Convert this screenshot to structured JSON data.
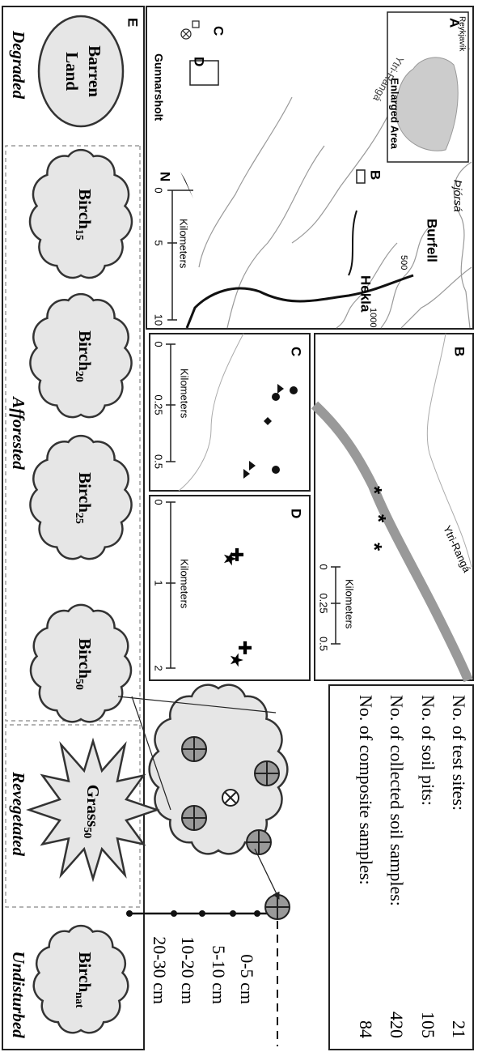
{
  "panel_a": {
    "label": "A",
    "inset": {
      "place": "Reykjavík",
      "caption": "Enlarged Area"
    },
    "rivers": [
      "Ytri-Rangá",
      "Þjórsá"
    ],
    "places": [
      "Burfell",
      "Hekla",
      "Gunnarsholt"
    ],
    "contours": [
      "500",
      "1000"
    ],
    "sites": [
      "B",
      "C",
      "D"
    ],
    "north": "N",
    "scale": {
      "ticks": [
        "0",
        "5",
        "10"
      ],
      "unit": "Kilometers"
    }
  },
  "panel_b": {
    "label": "B",
    "river": "Ytri-Rangá",
    "scale": {
      "ticks": [
        "0",
        "0.25",
        "0.5"
      ],
      "unit": "Kilometers"
    }
  },
  "panel_c": {
    "label": "C",
    "scale": {
      "ticks": [
        "0",
        "0.25",
        "0.5"
      ],
      "unit": "Kilometers"
    }
  },
  "panel_d": {
    "label": "D",
    "scale": {
      "ticks": [
        "0",
        "1",
        "2"
      ],
      "unit": "Kilometers"
    }
  },
  "summary": {
    "rows": [
      {
        "label": "No. of test sites:",
        "value": 21
      },
      {
        "label": "No. of soil pits:",
        "value": 105
      },
      {
        "label": "No. of collected soil samples:",
        "value": 420
      },
      {
        "label": "No. of composite samples:",
        "value": 84
      }
    ]
  },
  "depths": [
    "0-5 cm",
    "5-10 cm",
    "10-20 cm",
    "20-30 cm"
  ],
  "panel_e": {
    "label": "E",
    "barren": [
      "Barren",
      "Land"
    ],
    "sites": [
      {
        "name": "Birch",
        "sub": "15"
      },
      {
        "name": "Birch",
        "sub": "20"
      },
      {
        "name": "Birch",
        "sub": "25"
      },
      {
        "name": "Birch",
        "sub": "50"
      },
      {
        "name": "Grass",
        "sub": "50"
      },
      {
        "name": "Birch",
        "sub": "nat"
      }
    ],
    "groups": [
      "Degraded",
      "Afforested",
      "Revegetated",
      "Undisturbed"
    ]
  }
}
